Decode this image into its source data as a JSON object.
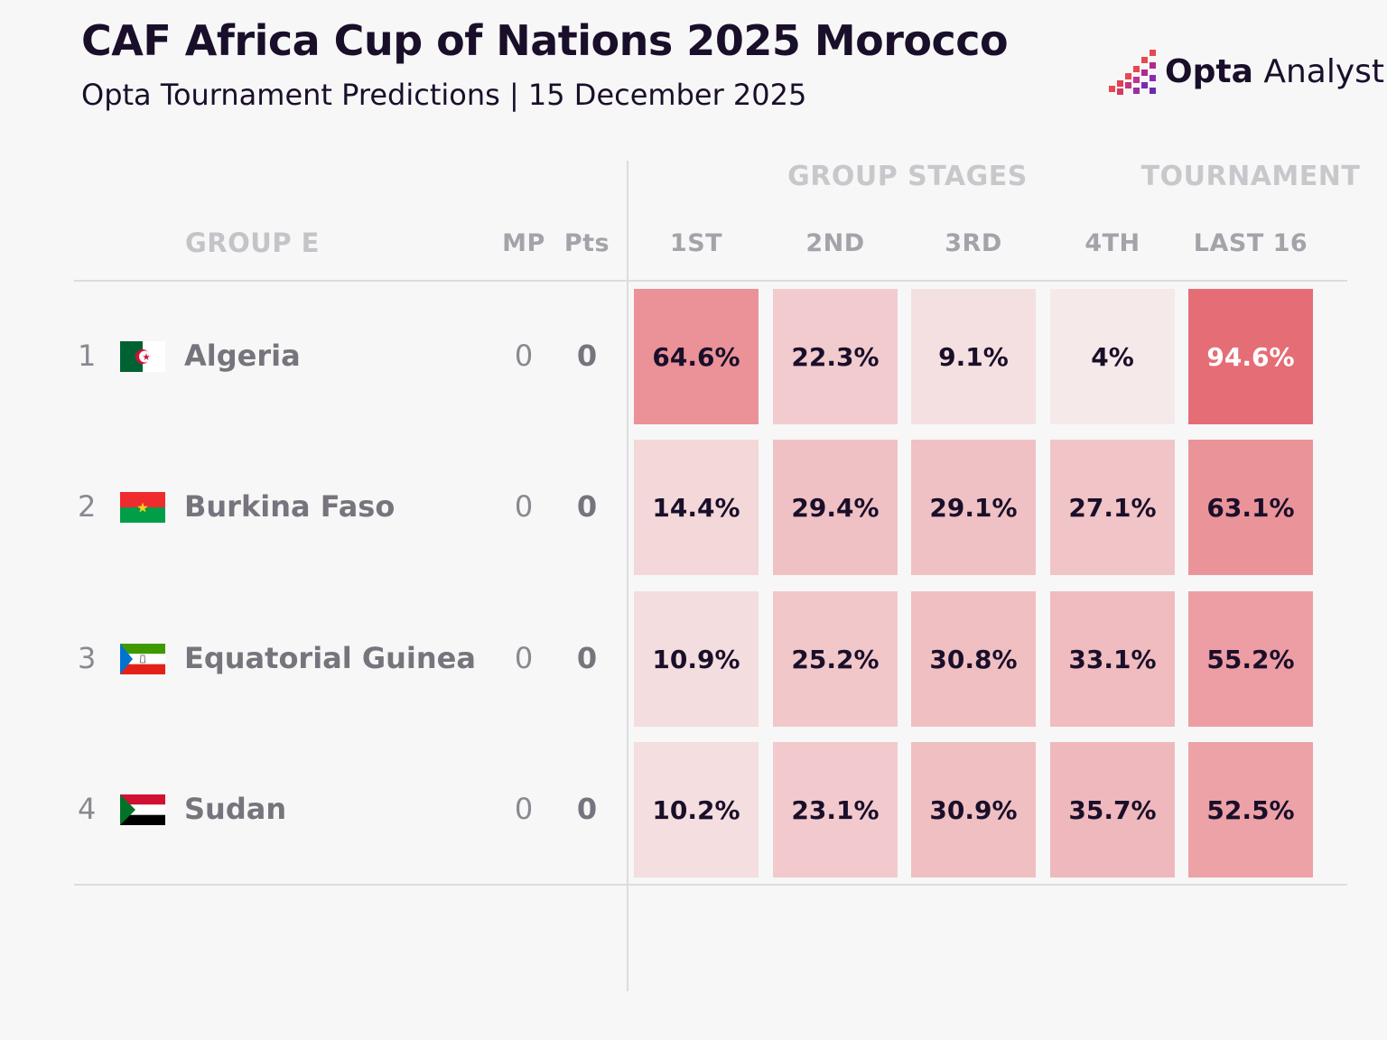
{
  "header": {
    "title": "CAF Africa Cup of Nations 2025 Morocco",
    "subtitle": "Opta Tournament Predictions | 15 December 2025",
    "logo_bold": "Opta",
    "logo_light": "Analyst"
  },
  "colors": {
    "background": "#f7f7f7",
    "text_dark": "#1a0f2a",
    "cell_low": "#f7f2f2",
    "cell_high": "#e46770",
    "logo_gradient": [
      "#e8484f",
      "#b02a8a",
      "#6a2bb0"
    ]
  },
  "table": {
    "section_labels": {
      "group_stages": "GROUP STAGES",
      "tournament": "TOURNAMENT"
    },
    "group_label": "GROUP E",
    "columns": [
      "MP",
      "Pts",
      "1ST",
      "2ND",
      "3RD",
      "4TH",
      "LAST 16"
    ]
  },
  "chart_data": {
    "type": "table",
    "title": "CAF Africa Cup of Nations 2025 Morocco",
    "subtitle": "Opta Tournament Predictions | 15 December 2025",
    "group": "GROUP E",
    "columns": [
      "1ST",
      "2ND",
      "3RD",
      "4TH",
      "LAST 16"
    ],
    "rows": [
      {
        "rank": "1",
        "team": "Algeria",
        "mp": "0",
        "pts": "0",
        "flag": "algeria-flag",
        "values": [
          64.6,
          22.3,
          9.1,
          4,
          94.6
        ],
        "labels": [
          "64.6%",
          "22.3%",
          "9.1%",
          "4%",
          "94.6%"
        ]
      },
      {
        "rank": "2",
        "team": "Burkina Faso",
        "mp": "0",
        "pts": "0",
        "flag": "burkina-faso-flag",
        "values": [
          14.4,
          29.4,
          29.1,
          27.1,
          63.1
        ],
        "labels": [
          "14.4%",
          "29.4%",
          "29.1%",
          "27.1%",
          "63.1%"
        ]
      },
      {
        "rank": "3",
        "team": "Equatorial Guinea",
        "mp": "0",
        "pts": "0",
        "flag": "equatorial-guinea-flag",
        "values": [
          10.9,
          25.2,
          30.8,
          33.1,
          55.2
        ],
        "labels": [
          "10.9%",
          "25.2%",
          "30.8%",
          "33.1%",
          "55.2%"
        ]
      },
      {
        "rank": "4",
        "team": "Sudan",
        "mp": "0",
        "pts": "0",
        "flag": "sudan-flag",
        "values": [
          10.2,
          23.1,
          30.9,
          35.7,
          52.5
        ],
        "labels": [
          "10.2%",
          "23.1%",
          "30.9%",
          "35.7%",
          "52.5%"
        ]
      }
    ]
  }
}
